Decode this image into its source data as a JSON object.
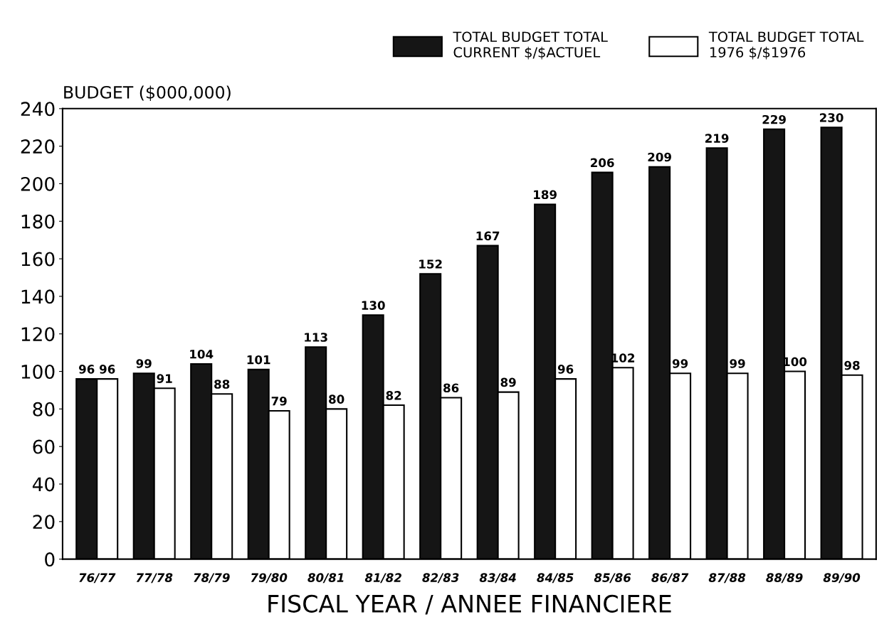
{
  "chart_data": {
    "type": "bar",
    "xlabel": "FISCAL YEAR / ANNEE FINANCIERE",
    "ylabel": "BUDGET ($000,000)",
    "categories": [
      "76/77",
      "77/78",
      "78/79",
      "79/80",
      "80/81",
      "81/82",
      "82/83",
      "83/84",
      "84/85",
      "85/86",
      "86/87",
      "87/88",
      "88/89",
      "89/90"
    ],
    "series": [
      {
        "name": "TOTAL BUDGET TOTAL\nCURRENT $/$ACTUEL",
        "color": "#151515",
        "values": [
          96,
          99,
          104,
          101,
          113,
          130,
          152,
          167,
          189,
          206,
          209,
          219,
          229,
          230
        ]
      },
      {
        "name": "TOTAL BUDGET TOTAL\n1976 $/$1976",
        "color": "#ffffff",
        "values": [
          96,
          91,
          88,
          79,
          80,
          82,
          86,
          89,
          96,
          102,
          99,
          99,
          100,
          98
        ]
      }
    ],
    "ylim": [
      0,
      240
    ],
    "yticks": [
      0,
      20,
      40,
      60,
      80,
      100,
      120,
      140,
      160,
      180,
      200,
      220,
      240
    ],
    "data_labels": true,
    "legend": "top right",
    "grid": false
  }
}
